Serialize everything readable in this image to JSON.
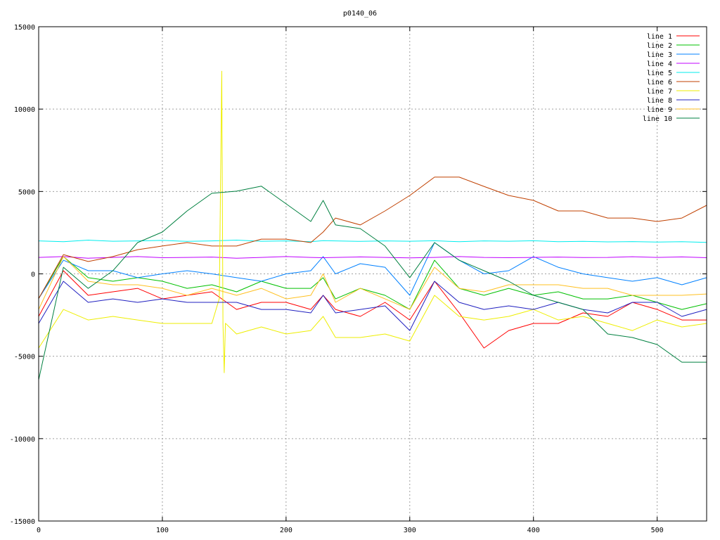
{
  "chart_data": {
    "type": "line",
    "title": "p0140_06",
    "xlabel": "",
    "ylabel": "",
    "xlim": [
      0,
      540
    ],
    "ylim": [
      -15000,
      15000
    ],
    "xticks": [
      0,
      100,
      200,
      300,
      400,
      500
    ],
    "yticks": [
      -15000,
      -10000,
      -5000,
      0,
      5000,
      10000,
      15000
    ],
    "grid": true,
    "legend_position": "top-right",
    "x": [
      0,
      20,
      40,
      60,
      80,
      100,
      120,
      140,
      160,
      180,
      200,
      220,
      230,
      240,
      260,
      280,
      300,
      320,
      340,
      360,
      380,
      400,
      420,
      440,
      460,
      480,
      500,
      520,
      540
    ],
    "series": [
      {
        "name": "line 1",
        "color": "#ff0000",
        "values": [
          -2580,
          190,
          -1300,
          -1090,
          -880,
          -1520,
          -1300,
          -1090,
          -2160,
          -1730,
          -1730,
          -2160,
          -1300,
          -2160,
          -2580,
          -1730,
          -2800,
          -450,
          -2370,
          -4500,
          -3440,
          -3010,
          -3010,
          -2370,
          -2580,
          -1730,
          -2160,
          -2800,
          -2800
        ]
      },
      {
        "name": "line 2",
        "color": "#00c000",
        "values": [
          -1500,
          1050,
          -230,
          -450,
          -230,
          -450,
          -880,
          -660,
          -1090,
          -450,
          -880,
          -880,
          -230,
          -1520,
          -880,
          -1300,
          -2160,
          830,
          -880,
          -1300,
          -880,
          -1300,
          -1090,
          -1520,
          -1520,
          -1300,
          -1730,
          -2160,
          -1810
        ]
      },
      {
        "name": "line 3",
        "color": "#0080ff",
        "values": [
          -1500,
          830,
          190,
          190,
          -230,
          0,
          190,
          0,
          -230,
          -450,
          0,
          190,
          1050,
          0,
          620,
          400,
          -1300,
          1900,
          830,
          0,
          190,
          1050,
          400,
          0,
          -230,
          -450,
          -230,
          -660,
          -230
        ]
      },
      {
        "name": "line 4",
        "color": "#c000ff",
        "values": [
          1000,
          1050,
          950,
          1000,
          1050,
          980,
          1000,
          1020,
          950,
          1000,
          1050,
          1000,
          980,
          1000,
          1030,
          1000,
          970,
          1000,
          1050,
          1000,
          980,
          1000,
          1020,
          990,
          1000,
          1040,
          1000,
          1030,
          980
        ]
      },
      {
        "name": "line 5",
        "color": "#00eeee",
        "values": [
          2000,
          1950,
          2050,
          1980,
          2000,
          2030,
          1970,
          2000,
          2050,
          1980,
          2000,
          1950,
          2020,
          2000,
          1970,
          2000,
          1980,
          2010,
          1950,
          2000,
          1980,
          2010,
          1950,
          1970,
          1940,
          1960,
          1930,
          1950,
          1910
        ]
      },
      {
        "name": "line 6",
        "color": "#c04000",
        "values": [
          -1500,
          1170,
          750,
          1050,
          1470,
          1690,
          1900,
          1690,
          1690,
          2110,
          2110,
          1900,
          2540,
          3390,
          2970,
          3820,
          4760,
          5870,
          5870,
          5310,
          4760,
          4460,
          3820,
          3820,
          3390,
          3390,
          3180,
          3390,
          4160
        ]
      },
      {
        "name": "line 7",
        "color": "#eeee00",
        "x": [
          0,
          20,
          40,
          60,
          80,
          100,
          120,
          140,
          146,
          148,
          149,
          150,
          151,
          160,
          180,
          200,
          220,
          230,
          240,
          260,
          280,
          300,
          320,
          340,
          360,
          380,
          400,
          420,
          440,
          460,
          480,
          500,
          520,
          540
        ],
        "values": [
          -4500,
          -2160,
          -2800,
          -2580,
          -2800,
          -3010,
          -3010,
          -3010,
          -1500,
          12300,
          -3000,
          -6000,
          -3000,
          -3650,
          -3220,
          -3650,
          -3440,
          -2580,
          -3860,
          -3860,
          -3650,
          -4080,
          -1300,
          -2580,
          -2800,
          -2580,
          -2160,
          -2800,
          -2580,
          -3010,
          -3440,
          -2800,
          -3220,
          -3010
        ]
      },
      {
        "name": "line 8",
        "color": "#2020c0",
        "values": [
          -3010,
          -450,
          -1730,
          -1520,
          -1730,
          -1520,
          -1730,
          -1730,
          -1730,
          -2160,
          -2160,
          -2370,
          -1300,
          -2370,
          -2160,
          -1940,
          -3440,
          -450,
          -1730,
          -2160,
          -1940,
          -2160,
          -1730,
          -2160,
          -2370,
          -1730,
          -1730,
          -2580,
          -2160
        ]
      },
      {
        "name": "line 9",
        "color": "#ffc020",
        "values": [
          -2160,
          1050,
          -450,
          -660,
          -660,
          -880,
          -1300,
          -880,
          -1300,
          -880,
          -1520,
          -1300,
          0,
          -1730,
          -880,
          -1520,
          -2160,
          400,
          -880,
          -1090,
          -660,
          -660,
          -660,
          -880,
          -880,
          -1300,
          -1300,
          -1300,
          -1220
        ]
      },
      {
        "name": "line 10",
        "color": "#008040",
        "values": [
          -6430,
          400,
          -880,
          190,
          1900,
          2540,
          3820,
          4890,
          5020,
          5320,
          4250,
          3180,
          4460,
          2970,
          2750,
          1690,
          -230,
          1900,
          830,
          190,
          -450,
          -1300,
          -1730,
          -2160,
          -3650,
          -3860,
          -4290,
          -5360,
          -5360
        ]
      }
    ]
  }
}
